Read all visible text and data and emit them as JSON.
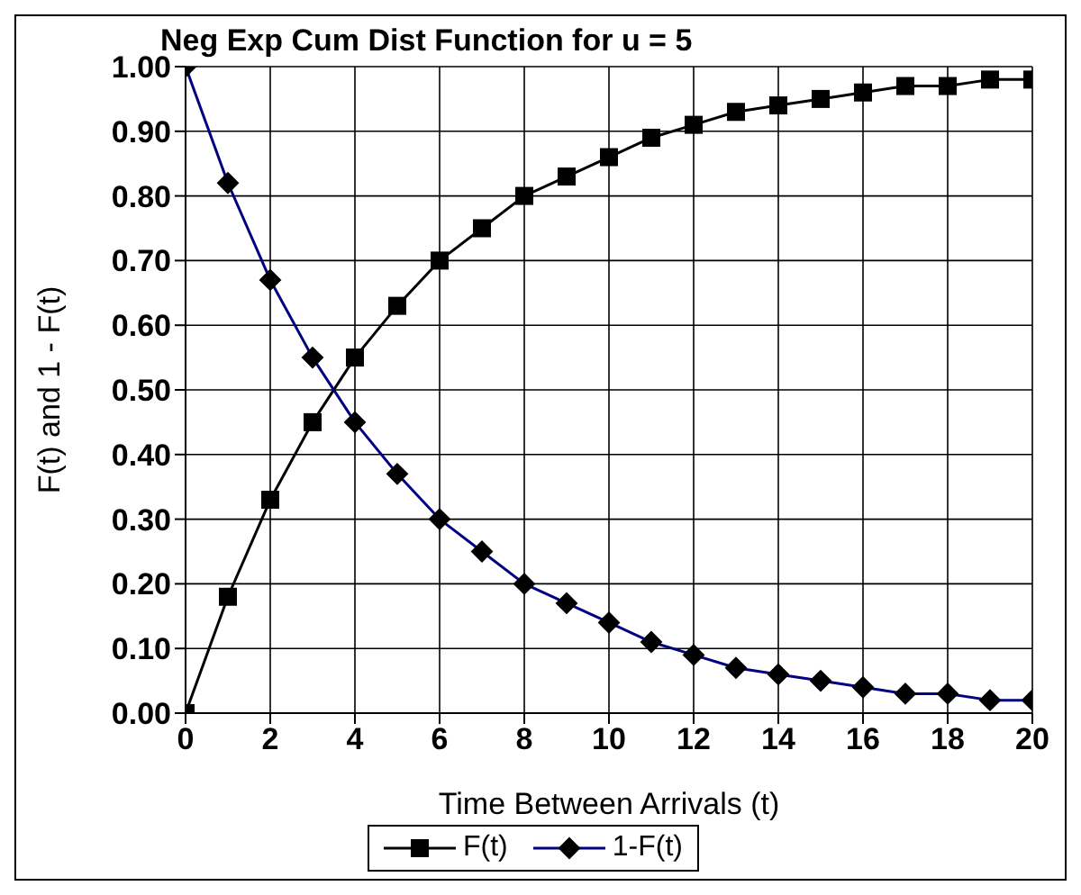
{
  "chart_data": {
    "type": "line",
    "title": "Neg Exp Cum Dist Function for u = 5",
    "xlabel": "Time Between Arrivals (t)",
    "ylabel": "F(t) and 1 - F(t)",
    "x": [
      0,
      1,
      2,
      3,
      4,
      5,
      6,
      7,
      8,
      9,
      10,
      11,
      12,
      13,
      14,
      15,
      16,
      17,
      18,
      19,
      20
    ],
    "series": [
      {
        "name": "F(t)",
        "color": "#000000",
        "marker": "square",
        "values": [
          0,
          0.18,
          0.33,
          0.45,
          0.55,
          0.63,
          0.7,
          0.75,
          0.8,
          0.83,
          0.86,
          0.89,
          0.91,
          0.93,
          0.94,
          0.95,
          0.96,
          0.97,
          0.97,
          0.98,
          0.98
        ]
      },
      {
        "name": "1-F(t)",
        "color": "#000080",
        "marker": "diamond",
        "values": [
          1,
          0.82,
          0.67,
          0.55,
          0.45,
          0.37,
          0.3,
          0.25,
          0.2,
          0.17,
          0.14,
          0.11,
          0.09,
          0.07,
          0.06,
          0.05,
          0.04,
          0.03,
          0.03,
          0.02,
          0.02
        ]
      }
    ],
    "xlim": [
      0,
      20
    ],
    "xticks": [
      0,
      2,
      4,
      6,
      8,
      10,
      12,
      14,
      16,
      18,
      20
    ],
    "ylim": [
      0,
      1
    ],
    "yticks": [
      {
        "value": 0,
        "label": "0.00"
      },
      {
        "value": 0.1,
        "label": "0.10"
      },
      {
        "value": 0.2,
        "label": "0.20"
      },
      {
        "value": 0.3,
        "label": "0.30"
      },
      {
        "value": 0.4,
        "label": "0.40"
      },
      {
        "value": 0.5,
        "label": "0.50"
      },
      {
        "value": 0.6,
        "label": "0.60"
      },
      {
        "value": 0.7,
        "label": "0.70"
      },
      {
        "value": 0.8,
        "label": "0.80"
      },
      {
        "value": 0.9,
        "label": "0.90"
      },
      {
        "value": 1,
        "label": "1.00"
      }
    ],
    "grid": true,
    "legend": "bottom",
    "line_style": "solid"
  }
}
